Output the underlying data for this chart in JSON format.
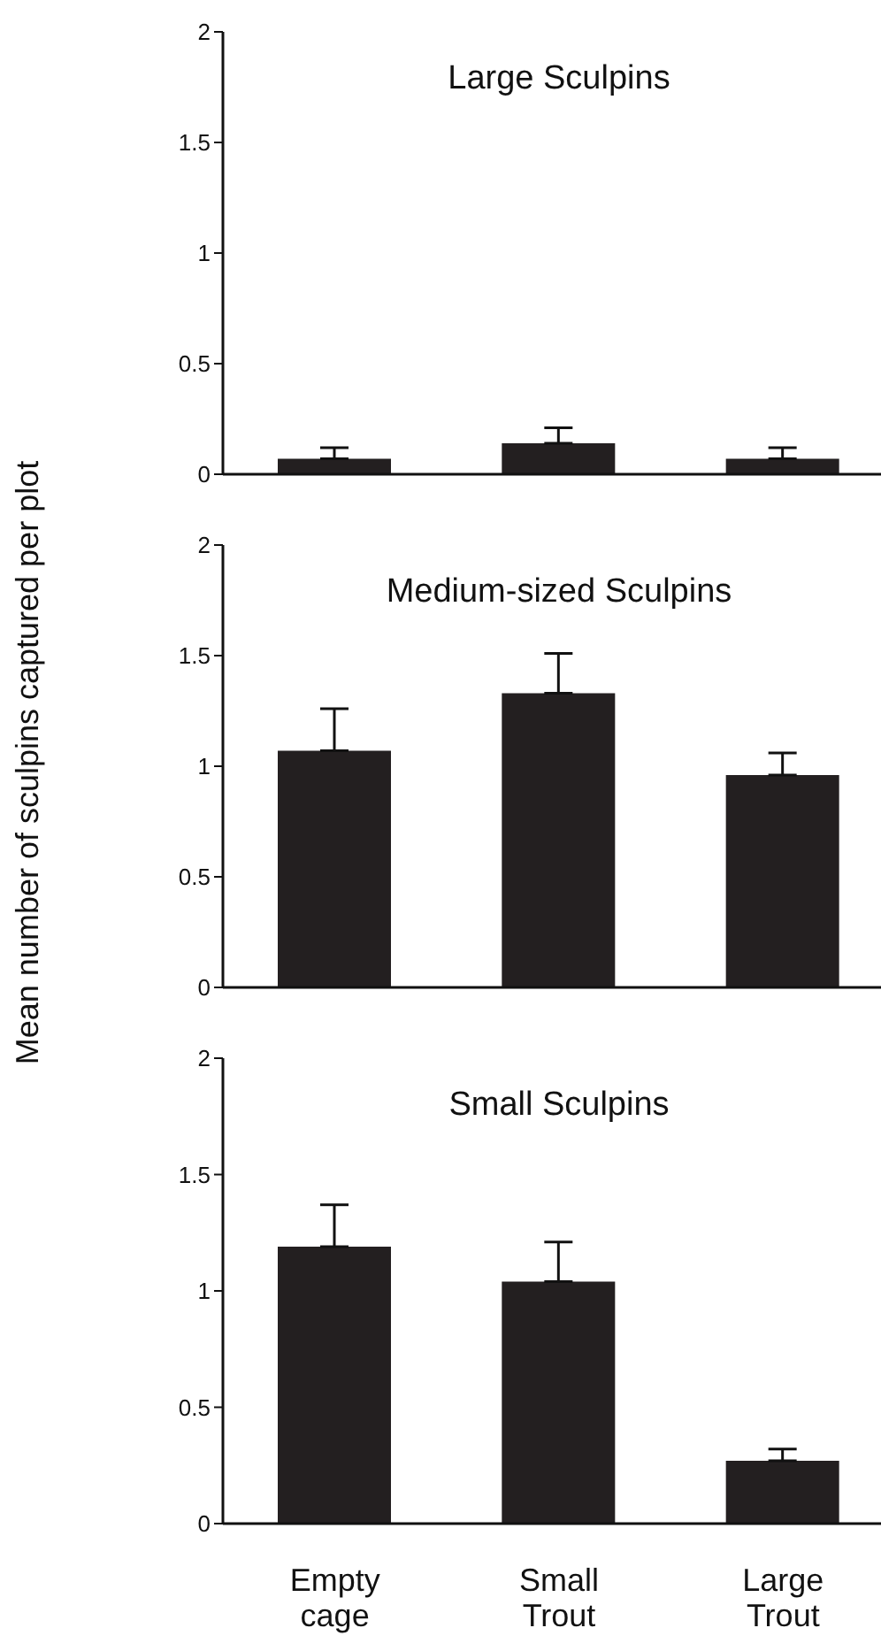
{
  "chart_data": [
    {
      "type": "bar",
      "title": "Large Sculpins",
      "categories": [
        null,
        null,
        null
      ],
      "values": [
        0.07,
        0.14,
        0.07
      ],
      "errors": [
        [
          0.07,
          0.12
        ],
        [
          0.14,
          0.21
        ],
        [
          0.07,
          0.12
        ]
      ],
      "color": "#231f20",
      "ylim": [
        0,
        2
      ],
      "yticks": [
        0,
        0.5,
        1,
        1.5,
        2
      ],
      "tick_labels": "y"
    },
    {
      "type": "bar",
      "title": "Medium-sized Sculpins",
      "ylabel": "Mean number of sculpins captured per plot",
      "categories": [
        null,
        null,
        null
      ],
      "values": [
        1.07,
        1.33,
        0.96
      ],
      "errors": [
        [
          1.07,
          1.26
        ],
        [
          1.33,
          1.51
        ],
        [
          0.96,
          1.06
        ]
      ],
      "color": "#231f20",
      "ylim": [
        0,
        2
      ],
      "yticks": [
        0,
        0.5,
        1,
        1.5,
        2
      ],
      "tick_labels": "y"
    },
    {
      "type": "bar",
      "title": "Small Sculpins",
      "categories": [
        "Empty cage",
        "Small Trout",
        "Large Trout"
      ],
      "values": [
        1.19,
        1.04,
        0.27
      ],
      "errors": [
        [
          1.19,
          1.37
        ],
        [
          1.04,
          1.21
        ],
        [
          0.27,
          0.32
        ]
      ],
      "color": "#231f20",
      "ylim": [
        0,
        2
      ],
      "yticks": [
        0,
        0.5,
        1,
        1.5,
        2
      ]
    }
  ]
}
